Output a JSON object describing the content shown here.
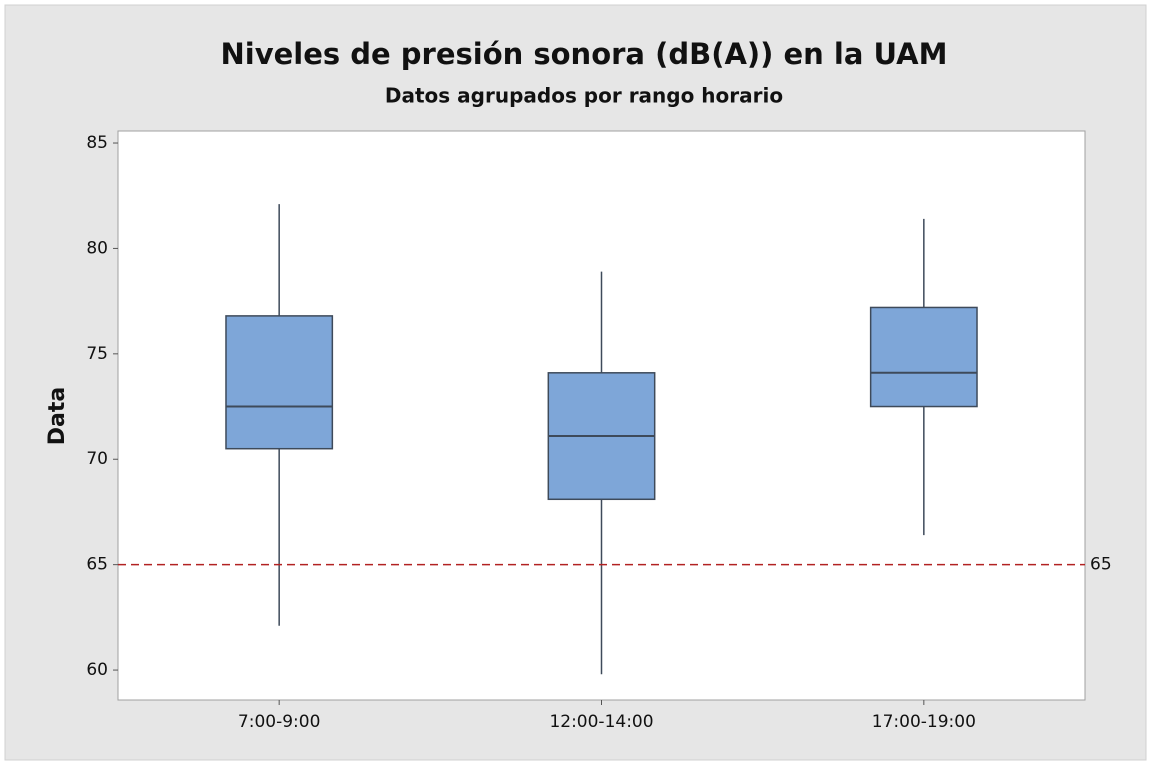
{
  "chart_data": {
    "type": "box",
    "title": "Niveles de presión sonora (dB(A))  en  la UAM",
    "subtitle": "Datos agrupados por rango horario",
    "ylabel": "Data",
    "categories": [
      "7:00-9:00",
      "12:00-14:00",
      "17:00-19:00"
    ],
    "low": [
      62.1,
      59.8,
      66.4
    ],
    "q1": [
      70.5,
      68.1,
      72.5
    ],
    "median": [
      72.5,
      71.1,
      74.1
    ],
    "q3": [
      76.8,
      74.1,
      77.2
    ],
    "high": [
      82.1,
      78.9,
      81.4
    ],
    "color": "#7ea6d8",
    "ylim": [
      58.58,
      85.57
    ],
    "yticks": [
      60,
      65,
      70,
      75,
      80,
      85
    ],
    "reference_line": 65,
    "reference_line_color": "#b22222"
  }
}
